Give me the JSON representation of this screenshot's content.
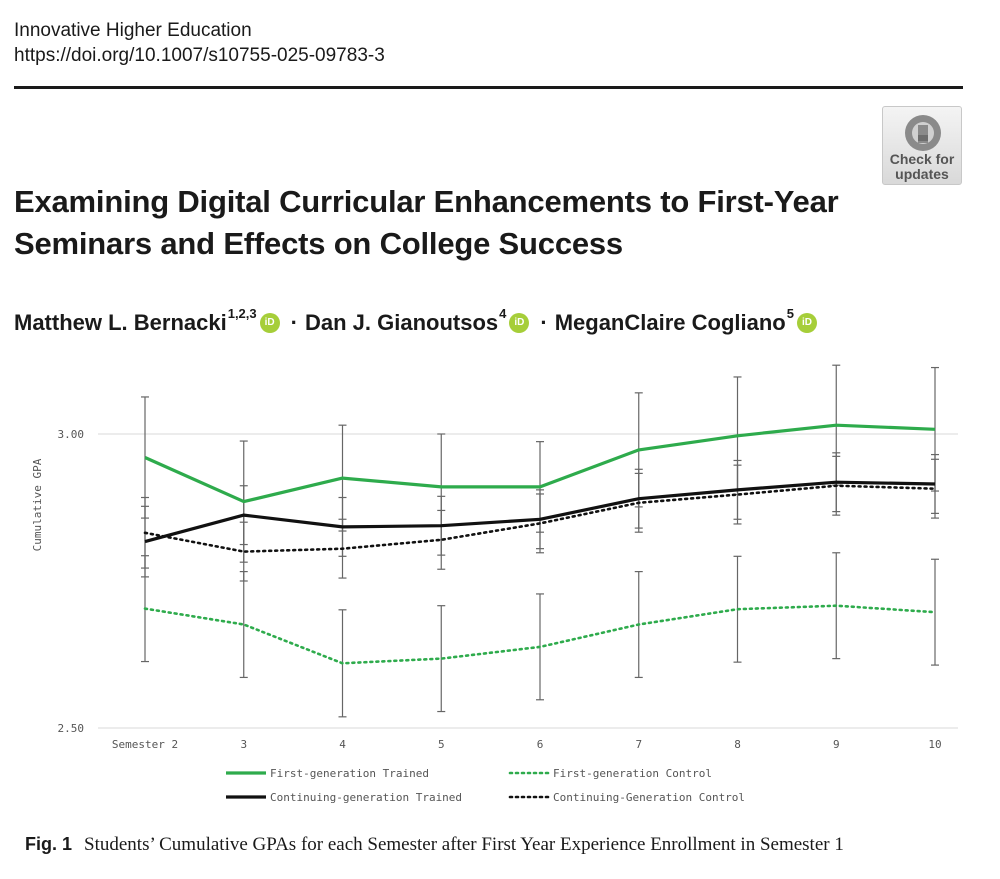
{
  "header": {
    "journal": "Innovative Higher Education",
    "doi": "https://doi.org/10.1007/s10755-025-09783-3"
  },
  "badge": {
    "line1": "Check for",
    "line2": "updates",
    "icon": "crossmark-icon"
  },
  "title": "Examining Digital Curricular Enhancements to First-Year Seminars and Effects on College Success",
  "authors": [
    {
      "name": "Matthew L. Bernacki",
      "affil": "1,2,3"
    },
    {
      "name": "Dan J. Gianoutsos",
      "affil": "4"
    },
    {
      "name": "MeganClaire Cogliano",
      "affil": "5"
    }
  ],
  "separator": "·",
  "orcid_label": "iD",
  "caption": {
    "label": "Fig. 1",
    "text": "Students’ Cumulative GPAs for each Semester after First Year Experience Enrollment in Semester 1"
  },
  "colors": {
    "green": "#2eab4c",
    "black": "#111111",
    "grid": "#d9d9d9",
    "error_bar": "#666666"
  },
  "chart_data": {
    "type": "line",
    "ylabel": "Cumulative GPA",
    "xlabel": "",
    "categories": [
      "Semester 2",
      "3",
      "4",
      "5",
      "6",
      "7",
      "8",
      "9",
      "10"
    ],
    "ylim": [
      2.5,
      3.0
    ],
    "yticks": [
      "3.00",
      "2.50"
    ],
    "ytick_values": [
      3.0,
      2.5
    ],
    "grid": "horizontal",
    "legend_position": "bottom",
    "series": [
      {
        "name": "First-generation Trained",
        "color": "#2eab4c",
        "style": "solid",
        "values": [
          2.96,
          2.885,
          2.925,
          2.91,
          2.91,
          2.973,
          2.997,
          3.015,
          3.008
        ],
        "err": [
          0.103,
          0.103,
          0.09,
          0.09,
          0.077,
          0.097,
          0.1,
          0.102,
          0.105
        ]
      },
      {
        "name": "First-generation Control",
        "color": "#2eab4c",
        "style": "dotted",
        "values": [
          2.703,
          2.676,
          2.61,
          2.618,
          2.638,
          2.676,
          2.702,
          2.708,
          2.697
        ],
        "err": [
          0.09,
          0.09,
          0.091,
          0.09,
          0.09,
          0.09,
          0.09,
          0.09,
          0.09
        ]
      },
      {
        "name": "Continuing-generation Trained",
        "color": "#111111",
        "style": "solid",
        "values": [
          2.817,
          2.862,
          2.842,
          2.844,
          2.855,
          2.89,
          2.905,
          2.918,
          2.915
        ],
        "err": [
          0.06,
          0.05,
          0.05,
          0.05,
          0.05,
          0.05,
          0.05,
          0.05,
          0.05
        ]
      },
      {
        "name": "Continuing-Generation Control",
        "color": "#111111",
        "style": "dotted",
        "values": [
          2.832,
          2.8,
          2.805,
          2.82,
          2.848,
          2.883,
          2.897,
          2.912,
          2.907
        ],
        "err": [
          0.06,
          0.05,
          0.05,
          0.05,
          0.05,
          0.05,
          0.05,
          0.05,
          0.05
        ]
      }
    ]
  }
}
